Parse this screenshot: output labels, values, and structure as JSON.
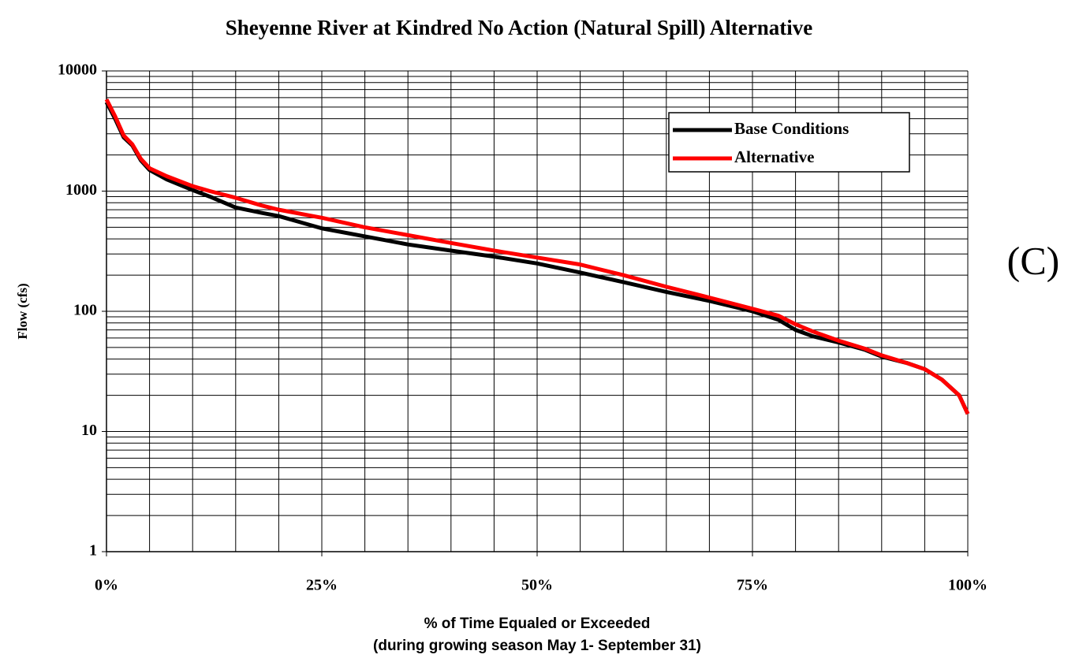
{
  "chart_data": {
    "type": "line",
    "title": "Sheyenne River at Kindred No Action (Natural Spill) Alternative",
    "ylabel": "Flow (cfs)",
    "xlabel_lines": [
      "% of Time Equaled or Exceeded",
      "(during growing season May 1- September 31)"
    ],
    "annotation": "(C)",
    "x": [
      0,
      1,
      2,
      3,
      4,
      5,
      7,
      10,
      12,
      15,
      18,
      20,
      25,
      30,
      35,
      40,
      45,
      50,
      55,
      60,
      65,
      70,
      75,
      78,
      80,
      82,
      85,
      88,
      90,
      93,
      95,
      97,
      99,
      100
    ],
    "series": [
      {
        "name": "Base Conditions",
        "color": "#000000",
        "values": [
          5500,
          4000,
          2800,
          2400,
          1800,
          1500,
          1250,
          1020,
          900,
          730,
          660,
          620,
          490,
          420,
          360,
          320,
          285,
          250,
          210,
          175,
          145,
          122,
          100,
          85,
          70,
          62,
          55,
          48,
          42,
          37,
          33,
          27,
          20,
          14
        ]
      },
      {
        "name": "Alternative",
        "color": "#ff0000",
        "values": [
          5800,
          4200,
          2900,
          2450,
          1850,
          1550,
          1330,
          1100,
          1000,
          880,
          760,
          700,
          600,
          500,
          430,
          370,
          320,
          280,
          245,
          200,
          160,
          130,
          105,
          92,
          78,
          68,
          57,
          49,
          43,
          37,
          33,
          27,
          20,
          14
        ]
      }
    ],
    "xlim": [
      0,
      100
    ],
    "xticks": [
      {
        "value": 0,
        "label": "0%"
      },
      {
        "value": 25,
        "label": "25%"
      },
      {
        "value": 50,
        "label": "50%"
      },
      {
        "value": 75,
        "label": "75%"
      },
      {
        "value": 100,
        "label": "100%"
      }
    ],
    "ylim": [
      1,
      10000
    ],
    "yticks": [
      1,
      10,
      100,
      1000,
      10000
    ],
    "log_y": true,
    "grid": true,
    "minor_grid": true,
    "legend": "upper right"
  }
}
